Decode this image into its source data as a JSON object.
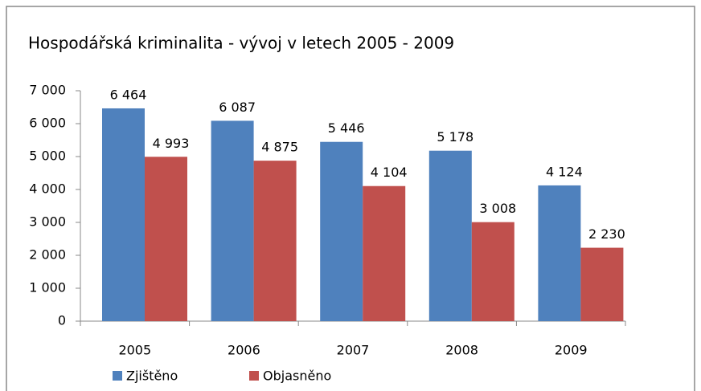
{
  "chart_data": {
    "type": "bar",
    "title": "Hospodářská kriminalita - vývoj v letech 2005 - 2009",
    "categories": [
      "2005",
      "2006",
      "2007",
      "2008",
      "2009"
    ],
    "series": [
      {
        "name": "Zjištěno",
        "color": "#4f81bd",
        "values": [
          6464,
          6087,
          5446,
          5178,
          4124
        ],
        "value_labels": [
          "6 464",
          "6 087",
          "5 446",
          "5 178",
          "4 124"
        ]
      },
      {
        "name": "Objasněno",
        "color": "#c0504d",
        "values": [
          4993,
          4875,
          4104,
          3008,
          2230
        ],
        "value_labels": [
          "4 993",
          "4 875",
          "4 104",
          "3 008",
          "2 230"
        ]
      }
    ],
    "ylim": [
      0,
      7000
    ],
    "yticks": [
      0,
      {
        "value": 1000,
        "label": "1 000"
      },
      {
        "value": 2000,
        "label": "2 000"
      },
      {
        "value": 3000,
        "label": "3 000"
      },
      {
        "value": 4000,
        "label": "4 000"
      },
      {
        "value": 5000,
        "label": "5 000"
      },
      {
        "value": 6000,
        "label": "6 000"
      },
      {
        "value": 7000,
        "label": "7 000"
      }
    ],
    "grid": false,
    "legend": "bottom"
  }
}
